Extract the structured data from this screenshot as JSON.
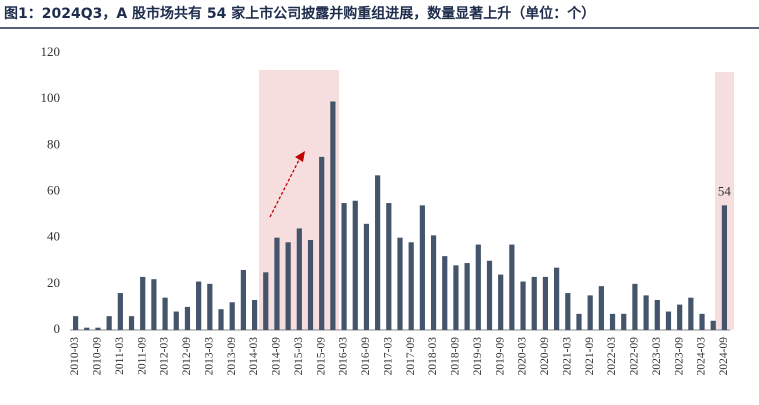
{
  "chart_data": {
    "type": "bar",
    "title": "图1：2024Q3，A 股市场共有 54 家上市公司披露并购重组进展，数量显著上升（单位：个）",
    "categories": [
      "2010-03",
      null,
      "2010-09",
      null,
      "2011-03",
      null,
      "2011-09",
      null,
      "2012-03",
      null,
      "2012-09",
      null,
      "2013-03",
      null,
      "2013-09",
      null,
      "2014-03",
      null,
      "2014-09",
      null,
      "2015-03",
      null,
      "2015-09",
      null,
      "2016-03",
      null,
      "2016-09",
      null,
      "2017-03",
      null,
      "2017-09",
      null,
      "2018-03",
      null,
      "2018-09",
      null,
      "2019-03",
      null,
      "2019-09",
      null,
      "2020-03",
      null,
      "2020-09",
      null,
      "2021-03",
      null,
      "2021-09",
      null,
      "2022-03",
      null,
      "2022-09",
      null,
      "2023-03",
      null,
      "2023-09",
      null,
      "2024-03",
      null,
      "2024-09"
    ],
    "values": [
      6,
      1,
      1,
      6,
      16,
      6,
      23,
      22,
      14,
      8,
      10,
      21,
      20,
      9,
      12,
      26,
      13,
      25,
      40,
      38,
      44,
      39,
      75,
      99,
      55,
      56,
      46,
      67,
      55,
      40,
      38,
      54,
      41,
      32,
      28,
      29,
      37,
      30,
      24,
      37,
      21,
      23,
      23,
      27,
      16,
      7,
      15,
      19,
      7,
      7,
      20,
      15,
      13,
      8,
      11,
      14,
      7,
      4,
      54
    ],
    "color": "#44546a",
    "ylim": [
      0,
      120
    ],
    "yticks": [
      0,
      20,
      40,
      60,
      80,
      100,
      120
    ]
  }
}
